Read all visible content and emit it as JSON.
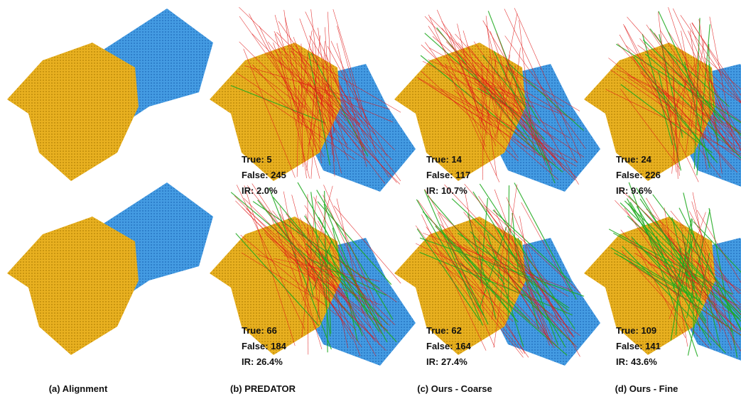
{
  "panels": [
    {
      "caption": "(a) Alignment"
    },
    {
      "caption": "(b) PREDATOR",
      "results": [
        [
          "True: 5",
          "False: 245",
          "IR: 2.0%"
        ],
        [
          "True: 66",
          "False: 184",
          "IR: 26.4%"
        ]
      ]
    },
    {
      "caption": "(c) Ours - Coarse",
      "results": [
        [
          "True: 14",
          "False: 117",
          "IR: 10.7%"
        ],
        [
          "True: 62",
          "False: 164",
          "IR: 27.4%"
        ]
      ]
    },
    {
      "caption": "(d) Ours - Fine",
      "results": [
        [
          "True: 24",
          "False: 226",
          "IR: 9.6%"
        ],
        [
          "True: 109",
          "False: 141",
          "IR: 43.6%"
        ]
      ]
    }
  ]
}
